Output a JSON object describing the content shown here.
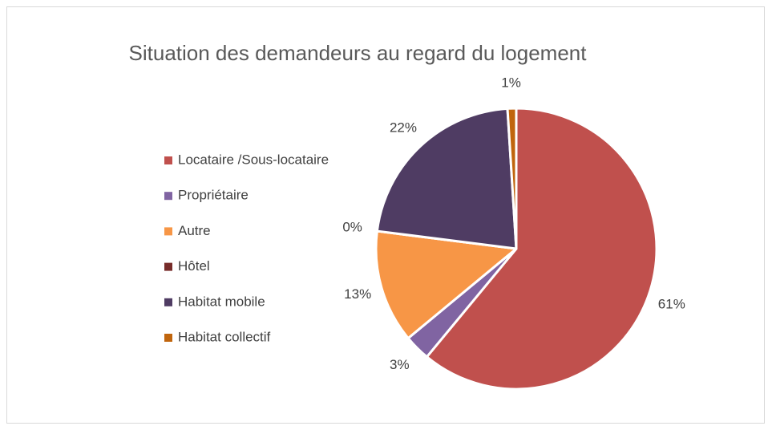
{
  "chart_data": {
    "type": "pie",
    "title": "Situation des demandeurs au regard du logement",
    "categories": [
      "Locataire /Sous-locataire",
      "Propriétaire",
      "Autre",
      "Hôtel",
      "Habitat mobile",
      "Habitat collectif"
    ],
    "values": [
      61,
      3,
      13,
      0,
      22,
      1
    ],
    "value_labels": [
      "61%",
      "3%",
      "13%",
      "0%",
      "22%",
      "1%"
    ],
    "colors": [
      "#c0504d",
      "#8064a2",
      "#f79646",
      "#772c2a",
      "#4f3c63",
      "#c0650d"
    ],
    "legend": "left"
  }
}
